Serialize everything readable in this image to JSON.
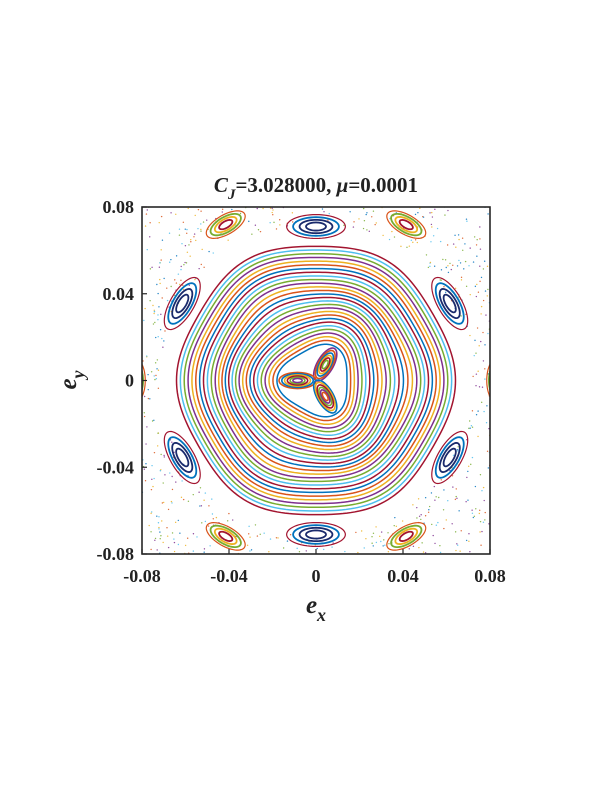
{
  "chart_data": {
    "type": "scatter",
    "title_parts": {
      "var": "C",
      "sub": "J",
      "eq": "=3.028000, ",
      "greek": "μ",
      "rest": "=0.0001"
    },
    "xlabel": {
      "main": "e",
      "sub": "x"
    },
    "ylabel": {
      "main": "e",
      "sub": "y"
    },
    "xlim": [
      -0.08,
      0.08
    ],
    "ylim": [
      -0.08,
      0.08
    ],
    "xticks": [
      {
        "value": -0.08,
        "label": "-0.08"
      },
      {
        "value": -0.04,
        "label": "-0.04"
      },
      {
        "value": 0,
        "label": "0"
      },
      {
        "value": 0.04,
        "label": "0.04"
      },
      {
        "value": 0.08,
        "label": "0.08"
      }
    ],
    "yticks": [
      {
        "value": 0.08,
        "label": "0.08"
      },
      {
        "value": 0.04,
        "label": "0.04"
      },
      {
        "value": 0,
        "label": "0"
      },
      {
        "value": -0.04,
        "label": "-0.04"
      },
      {
        "value": -0.08,
        "label": "-0.08"
      }
    ],
    "grid": false,
    "legend": "none",
    "palette": [
      "#0072BD",
      "#D95319",
      "#EDB120",
      "#7E2F8E",
      "#77AC30",
      "#4DBEEE",
      "#A2142F"
    ],
    "central_lobes": {
      "count": 3,
      "angles_deg": [
        60,
        180,
        300
      ],
      "center": [
        0,
        0
      ]
    },
    "invariant_curves": {
      "radius_min": 0.004,
      "radius_max": 0.063,
      "count": 28,
      "threefold_modulation": 0.18
    },
    "resonance_islands": {
      "count": 6,
      "radius": 0.071,
      "angles_deg": [
        30,
        90,
        150,
        210,
        270,
        330
      ]
    },
    "secondary_islands": {
      "count": 6,
      "radius": 0.083,
      "angles_deg": [
        0,
        60,
        120,
        180,
        240,
        300
      ]
    },
    "chaotic_band": {
      "radius_min": 0.072,
      "radius_max": 0.115
    }
  }
}
